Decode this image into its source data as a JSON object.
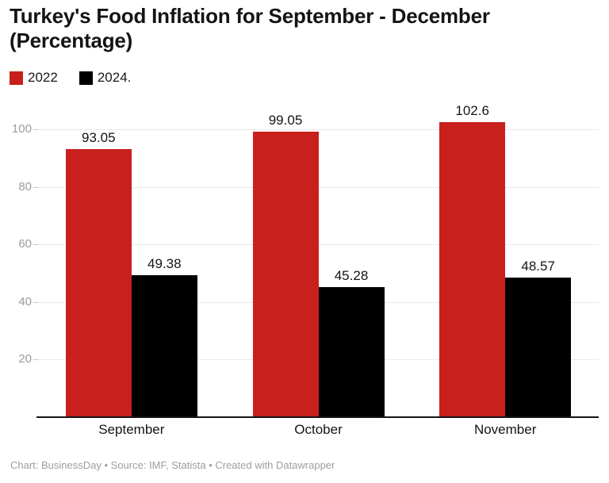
{
  "header": {
    "title": "Turkey's Food Inflation for September - December (Percentage)"
  },
  "legend": {
    "items": [
      {
        "label": "2022",
        "color": "#c8201d"
      },
      {
        "label": "2024.",
        "color": "#000000"
      }
    ]
  },
  "footer": {
    "text": "Chart: BusinessDay • Source: IMF, Statista • Created with Datawrapper"
  },
  "colors": {
    "series_2022": "#c8201d",
    "series_2024": "#000000",
    "gridline": "#e9e9e9",
    "axis_line": "#151517",
    "tick_text": "#9b9b9b",
    "label_text": "#141414",
    "footer_text": "#9e9e9e",
    "background": "#ffffff"
  },
  "chart_data": {
    "type": "bar",
    "title": "Turkey's Food Inflation for September - December (Percentage)",
    "categories": [
      "September",
      "October",
      "November"
    ],
    "series": [
      {
        "name": "2022",
        "color": "#c8201d",
        "values": [
          93.05,
          99.05,
          102.6
        ],
        "labels": [
          "93.05",
          "99.05",
          "102.6"
        ]
      },
      {
        "name": "2024.",
        "color": "#000000",
        "values": [
          49.38,
          45.28,
          48.57
        ],
        "labels": [
          "49.38",
          "45.28",
          "48.57"
        ]
      }
    ],
    "xlabel": "",
    "ylabel": "",
    "ylim": [
      0,
      110
    ],
    "yticks": [
      20,
      40,
      60,
      80,
      100
    ],
    "grid": true,
    "value_labels": true,
    "legend_position": "top-left"
  }
}
